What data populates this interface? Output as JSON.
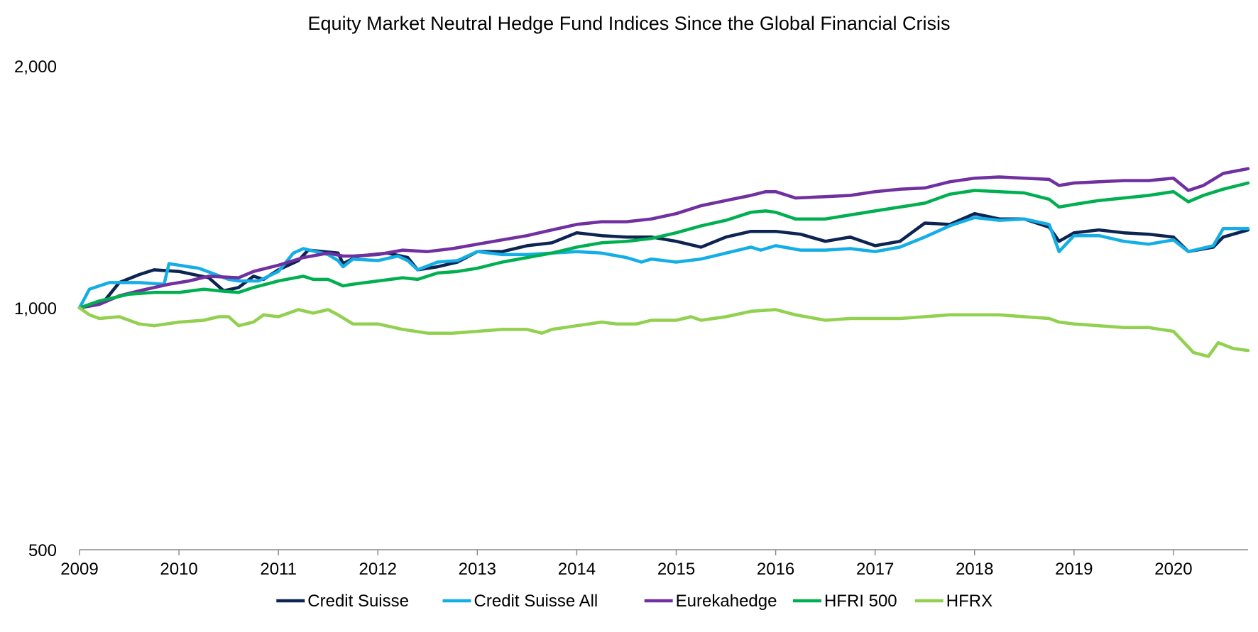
{
  "chart_data": {
    "type": "line",
    "title": "Equity Market Neutral Hedge Fund Indices Since the Global Financial Crisis",
    "xlabel": "",
    "ylabel": "",
    "y_scale": "log",
    "ylim": [
      500,
      2000
    ],
    "y_ticks": [
      500,
      1000,
      2000
    ],
    "y_tick_labels": [
      "500",
      "1,000",
      "2,000"
    ],
    "x_ticks": [
      2009,
      2010,
      2011,
      2012,
      2013,
      2014,
      2015,
      2016,
      2017,
      2018,
      2019,
      2020
    ],
    "x_tick_labels": [
      "2009",
      "2010",
      "2011",
      "2012",
      "2013",
      "2014",
      "2015",
      "2016",
      "2017",
      "2018",
      "2019",
      "2020"
    ],
    "xlim": [
      2009.0,
      2020.75
    ],
    "grid": false,
    "legend_position": "bottom",
    "series": [
      {
        "name": "Credit Suisse",
        "color": "#0d2452",
        "points": [
          [
            2009.0,
            1000
          ],
          [
            2009.25,
            1020
          ],
          [
            2009.4,
            1075
          ],
          [
            2009.6,
            1100
          ],
          [
            2009.75,
            1115
          ],
          [
            2010.0,
            1110
          ],
          [
            2010.3,
            1090
          ],
          [
            2010.45,
            1050
          ],
          [
            2010.6,
            1060
          ],
          [
            2010.75,
            1095
          ],
          [
            2010.85,
            1085
          ],
          [
            2011.0,
            1115
          ],
          [
            2011.2,
            1145
          ],
          [
            2011.3,
            1180
          ],
          [
            2011.6,
            1170
          ],
          [
            2011.65,
            1135
          ],
          [
            2011.8,
            1160
          ],
          [
            2012.1,
            1170
          ],
          [
            2012.3,
            1155
          ],
          [
            2012.4,
            1115
          ],
          [
            2012.6,
            1125
          ],
          [
            2012.8,
            1140
          ],
          [
            2013.0,
            1175
          ],
          [
            2013.25,
            1175
          ],
          [
            2013.5,
            1195
          ],
          [
            2013.75,
            1205
          ],
          [
            2014.0,
            1240
          ],
          [
            2014.25,
            1230
          ],
          [
            2014.5,
            1225
          ],
          [
            2014.75,
            1225
          ],
          [
            2015.0,
            1210
          ],
          [
            2015.25,
            1190
          ],
          [
            2015.5,
            1225
          ],
          [
            2015.75,
            1245
          ],
          [
            2016.0,
            1245
          ],
          [
            2016.25,
            1235
          ],
          [
            2016.5,
            1210
          ],
          [
            2016.75,
            1225
          ],
          [
            2017.0,
            1195
          ],
          [
            2017.25,
            1210
          ],
          [
            2017.5,
            1275
          ],
          [
            2017.75,
            1270
          ],
          [
            2018.0,
            1310
          ],
          [
            2018.25,
            1290
          ],
          [
            2018.5,
            1290
          ],
          [
            2018.75,
            1260
          ],
          [
            2018.85,
            1210
          ],
          [
            2019.0,
            1240
          ],
          [
            2019.25,
            1250
          ],
          [
            2019.5,
            1240
          ],
          [
            2019.75,
            1235
          ],
          [
            2020.0,
            1225
          ],
          [
            2020.15,
            1175
          ],
          [
            2020.4,
            1190
          ],
          [
            2020.5,
            1225
          ],
          [
            2020.75,
            1250
          ]
        ]
      },
      {
        "name": "Credit Suisse All",
        "color": "#14aee6",
        "points": [
          [
            2009.0,
            1000
          ],
          [
            2009.1,
            1055
          ],
          [
            2009.3,
            1075
          ],
          [
            2009.6,
            1075
          ],
          [
            2009.85,
            1070
          ],
          [
            2009.9,
            1135
          ],
          [
            2010.1,
            1125
          ],
          [
            2010.2,
            1120
          ],
          [
            2010.5,
            1085
          ],
          [
            2010.6,
            1080
          ],
          [
            2010.8,
            1080
          ],
          [
            2011.0,
            1110
          ],
          [
            2011.15,
            1170
          ],
          [
            2011.25,
            1185
          ],
          [
            2011.5,
            1165
          ],
          [
            2011.6,
            1145
          ],
          [
            2011.65,
            1125
          ],
          [
            2011.75,
            1150
          ],
          [
            2012.0,
            1145
          ],
          [
            2012.2,
            1160
          ],
          [
            2012.3,
            1145
          ],
          [
            2012.4,
            1115
          ],
          [
            2012.6,
            1140
          ],
          [
            2012.8,
            1145
          ],
          [
            2013.0,
            1175
          ],
          [
            2013.25,
            1165
          ],
          [
            2013.5,
            1165
          ],
          [
            2013.75,
            1170
          ],
          [
            2014.0,
            1175
          ],
          [
            2014.25,
            1170
          ],
          [
            2014.5,
            1155
          ],
          [
            2014.65,
            1140
          ],
          [
            2014.75,
            1150
          ],
          [
            2015.0,
            1140
          ],
          [
            2015.25,
            1150
          ],
          [
            2015.5,
            1170
          ],
          [
            2015.75,
            1190
          ],
          [
            2015.85,
            1180
          ],
          [
            2016.0,
            1195
          ],
          [
            2016.25,
            1180
          ],
          [
            2016.5,
            1180
          ],
          [
            2016.75,
            1185
          ],
          [
            2017.0,
            1175
          ],
          [
            2017.25,
            1190
          ],
          [
            2017.5,
            1225
          ],
          [
            2017.75,
            1265
          ],
          [
            2018.0,
            1295
          ],
          [
            2018.25,
            1285
          ],
          [
            2018.5,
            1290
          ],
          [
            2018.75,
            1270
          ],
          [
            2018.85,
            1175
          ],
          [
            2019.0,
            1230
          ],
          [
            2019.25,
            1230
          ],
          [
            2019.5,
            1210
          ],
          [
            2019.75,
            1200
          ],
          [
            2020.0,
            1215
          ],
          [
            2020.15,
            1175
          ],
          [
            2020.4,
            1195
          ],
          [
            2020.5,
            1255
          ],
          [
            2020.75,
            1255
          ]
        ]
      },
      {
        "name": "Eurekahedge",
        "color": "#7030a0",
        "points": [
          [
            2009.0,
            1000
          ],
          [
            2009.2,
            1010
          ],
          [
            2009.4,
            1035
          ],
          [
            2009.6,
            1050
          ],
          [
            2009.9,
            1070
          ],
          [
            2010.1,
            1080
          ],
          [
            2010.3,
            1095
          ],
          [
            2010.6,
            1090
          ],
          [
            2010.75,
            1110
          ],
          [
            2011.0,
            1130
          ],
          [
            2011.25,
            1155
          ],
          [
            2011.5,
            1170
          ],
          [
            2011.65,
            1160
          ],
          [
            2011.75,
            1160
          ],
          [
            2012.0,
            1165
          ],
          [
            2012.25,
            1180
          ],
          [
            2012.5,
            1175
          ],
          [
            2012.75,
            1185
          ],
          [
            2013.0,
            1200
          ],
          [
            2013.25,
            1215
          ],
          [
            2013.5,
            1230
          ],
          [
            2013.75,
            1250
          ],
          [
            2014.0,
            1270
          ],
          [
            2014.25,
            1280
          ],
          [
            2014.5,
            1280
          ],
          [
            2014.75,
            1290
          ],
          [
            2015.0,
            1310
          ],
          [
            2015.25,
            1340
          ],
          [
            2015.5,
            1360
          ],
          [
            2015.75,
            1380
          ],
          [
            2015.9,
            1395
          ],
          [
            2016.0,
            1395
          ],
          [
            2016.2,
            1370
          ],
          [
            2016.5,
            1375
          ],
          [
            2016.75,
            1380
          ],
          [
            2017.0,
            1395
          ],
          [
            2017.25,
            1405
          ],
          [
            2017.5,
            1410
          ],
          [
            2017.75,
            1435
          ],
          [
            2018.0,
            1450
          ],
          [
            2018.25,
            1455
          ],
          [
            2018.5,
            1450
          ],
          [
            2018.75,
            1445
          ],
          [
            2018.85,
            1420
          ],
          [
            2019.0,
            1430
          ],
          [
            2019.25,
            1435
          ],
          [
            2019.5,
            1440
          ],
          [
            2019.75,
            1440
          ],
          [
            2020.0,
            1450
          ],
          [
            2020.15,
            1400
          ],
          [
            2020.3,
            1420
          ],
          [
            2020.5,
            1470
          ],
          [
            2020.75,
            1490
          ]
        ]
      },
      {
        "name": "HFRI 500",
        "color": "#00b050",
        "points": [
          [
            2009.0,
            1000
          ],
          [
            2009.2,
            1020
          ],
          [
            2009.5,
            1040
          ],
          [
            2009.75,
            1045
          ],
          [
            2010.0,
            1045
          ],
          [
            2010.25,
            1055
          ],
          [
            2010.4,
            1050
          ],
          [
            2010.6,
            1045
          ],
          [
            2010.75,
            1060
          ],
          [
            2011.0,
            1080
          ],
          [
            2011.25,
            1095
          ],
          [
            2011.35,
            1085
          ],
          [
            2011.5,
            1085
          ],
          [
            2011.65,
            1065
          ],
          [
            2011.75,
            1070
          ],
          [
            2012.0,
            1080
          ],
          [
            2012.25,
            1090
          ],
          [
            2012.4,
            1085
          ],
          [
            2012.6,
            1105
          ],
          [
            2012.8,
            1110
          ],
          [
            2013.0,
            1120
          ],
          [
            2013.25,
            1140
          ],
          [
            2013.5,
            1155
          ],
          [
            2013.75,
            1170
          ],
          [
            2014.0,
            1190
          ],
          [
            2014.25,
            1205
          ],
          [
            2014.5,
            1210
          ],
          [
            2014.75,
            1220
          ],
          [
            2015.0,
            1240
          ],
          [
            2015.25,
            1265
          ],
          [
            2015.5,
            1285
          ],
          [
            2015.75,
            1315
          ],
          [
            2015.9,
            1320
          ],
          [
            2016.0,
            1315
          ],
          [
            2016.2,
            1290
          ],
          [
            2016.5,
            1290
          ],
          [
            2016.75,
            1305
          ],
          [
            2017.0,
            1320
          ],
          [
            2017.25,
            1335
          ],
          [
            2017.5,
            1350
          ],
          [
            2017.75,
            1385
          ],
          [
            2018.0,
            1400
          ],
          [
            2018.25,
            1395
          ],
          [
            2018.5,
            1390
          ],
          [
            2018.75,
            1365
          ],
          [
            2018.85,
            1335
          ],
          [
            2019.0,
            1345
          ],
          [
            2019.25,
            1360
          ],
          [
            2019.5,
            1370
          ],
          [
            2019.75,
            1380
          ],
          [
            2020.0,
            1395
          ],
          [
            2020.15,
            1355
          ],
          [
            2020.3,
            1380
          ],
          [
            2020.5,
            1405
          ],
          [
            2020.75,
            1430
          ]
        ]
      },
      {
        "name": "HFRX",
        "color": "#92d050",
        "points": [
          [
            2009.0,
            1000
          ],
          [
            2009.1,
            980
          ],
          [
            2009.2,
            970
          ],
          [
            2009.4,
            975
          ],
          [
            2009.6,
            955
          ],
          [
            2009.75,
            950
          ],
          [
            2010.0,
            960
          ],
          [
            2010.25,
            965
          ],
          [
            2010.4,
            975
          ],
          [
            2010.5,
            975
          ],
          [
            2010.6,
            950
          ],
          [
            2010.75,
            960
          ],
          [
            2010.85,
            980
          ],
          [
            2011.0,
            975
          ],
          [
            2011.2,
            995
          ],
          [
            2011.35,
            985
          ],
          [
            2011.5,
            995
          ],
          [
            2011.6,
            980
          ],
          [
            2011.75,
            955
          ],
          [
            2012.0,
            955
          ],
          [
            2012.25,
            940
          ],
          [
            2012.5,
            930
          ],
          [
            2012.75,
            930
          ],
          [
            2013.0,
            935
          ],
          [
            2013.25,
            940
          ],
          [
            2013.5,
            940
          ],
          [
            2013.65,
            930
          ],
          [
            2013.75,
            940
          ],
          [
            2014.0,
            950
          ],
          [
            2014.25,
            960
          ],
          [
            2014.4,
            955
          ],
          [
            2014.6,
            955
          ],
          [
            2014.75,
            965
          ],
          [
            2015.0,
            965
          ],
          [
            2015.15,
            975
          ],
          [
            2015.25,
            965
          ],
          [
            2015.5,
            975
          ],
          [
            2015.75,
            990
          ],
          [
            2016.0,
            995
          ],
          [
            2016.2,
            980
          ],
          [
            2016.5,
            965
          ],
          [
            2016.75,
            970
          ],
          [
            2017.0,
            970
          ],
          [
            2017.25,
            970
          ],
          [
            2017.5,
            975
          ],
          [
            2017.75,
            980
          ],
          [
            2018.0,
            980
          ],
          [
            2018.25,
            980
          ],
          [
            2018.5,
            975
          ],
          [
            2018.75,
            970
          ],
          [
            2018.85,
            960
          ],
          [
            2019.0,
            955
          ],
          [
            2019.25,
            950
          ],
          [
            2019.5,
            945
          ],
          [
            2019.75,
            945
          ],
          [
            2020.0,
            935
          ],
          [
            2020.2,
            880
          ],
          [
            2020.35,
            870
          ],
          [
            2020.45,
            905
          ],
          [
            2020.6,
            890
          ],
          [
            2020.75,
            885
          ]
        ]
      }
    ]
  }
}
